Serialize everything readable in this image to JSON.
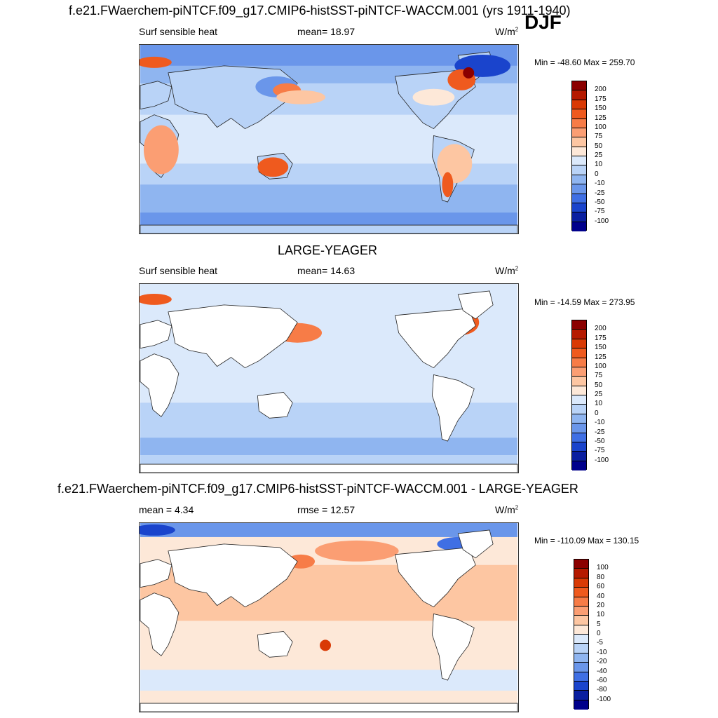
{
  "season": "DJF",
  "units": "W/m",
  "units_exp": "2",
  "panels": [
    {
      "heading": "f.e21.FWaerchem-piNTCF.f09_g17.CMIP6-histSST-piNTCF-WACCM.001 (yrs 1911-1940)",
      "left": "Surf sensible heat",
      "center": "mean=  18.97",
      "minmax": "Min = -48.60 Max = 259.70",
      "levels": [
        "200",
        "175",
        "150",
        "125",
        "100",
        "75",
        "50",
        "25",
        "10",
        "0",
        "-10",
        "-25",
        "-50",
        "-75",
        "-100"
      ]
    },
    {
      "heading": "LARGE-YEAGER",
      "left": "Surf sensible heat",
      "center": "mean=  14.63",
      "minmax": "Min = -14.59 Max = 273.95",
      "levels": [
        "200",
        "175",
        "150",
        "125",
        "100",
        "75",
        "50",
        "25",
        "10",
        "0",
        "-10",
        "-25",
        "-50",
        "-75",
        "-100"
      ]
    },
    {
      "heading": "f.e21.FWaerchem-piNTCF.f09_g17.CMIP6-histSST-piNTCF-WACCM.001 - LARGE-YEAGER",
      "left": "mean =   4.34",
      "center": "rmse =  12.57",
      "minmax": "Min = -110.09 Max = 130.15",
      "levels": [
        "100",
        "80",
        "60",
        "40",
        "20",
        "10",
        "5",
        "0",
        "-5",
        "-10",
        "-20",
        "-40",
        "-60",
        "-80",
        "-100"
      ]
    }
  ],
  "colorbar_colors": [
    "#8b0000",
    "#b51a00",
    "#d93a05",
    "#ef5a1e",
    "#f77c47",
    "#fb9e73",
    "#fdc6a2",
    "#fde8d8",
    "#dbe9fb",
    "#b9d3f7",
    "#8fb5f0",
    "#6a96ea",
    "#3f6fe4",
    "#1a44cc",
    "#0a1fa0",
    "#00008b"
  ]
}
